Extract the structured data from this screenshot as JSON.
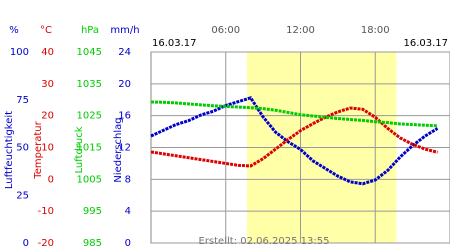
{
  "chart_data": {
    "type": "line",
    "date_left": "16.03.17",
    "date_right": "16.03.17",
    "created": "Erstellt: 02.06.2025 13:55",
    "x": [
      0,
      1,
      2,
      3,
      4,
      5,
      6,
      7,
      8,
      9,
      10,
      11,
      12,
      13,
      14,
      15,
      16,
      17,
      18,
      19,
      20,
      21,
      22,
      23
    ],
    "xlim": [
      0,
      24
    ],
    "xticks": [
      {
        "value": 6,
        "label": "06:00"
      },
      {
        "value": 12,
        "label": "12:00"
      },
      {
        "value": 18,
        "label": "18:00"
      }
    ],
    "daylight": [
      7.7,
      19.7
    ],
    "daylight_color": "#ffffa8",
    "grid": true,
    "axes": [
      {
        "unit": "%",
        "label": "Luftfeuchtigkeit",
        "color": "#0000cc",
        "ylim": [
          0,
          100
        ],
        "yticks": [
          0,
          25,
          50,
          75,
          100
        ],
        "values": [
          56,
          59,
          62,
          64,
          67,
          69,
          72,
          74,
          76,
          66,
          58,
          53,
          49,
          43,
          39,
          35,
          32,
          31,
          33,
          38,
          45,
          51,
          56,
          60
        ]
      },
      {
        "unit": "°C",
        "label": "Temperatur",
        "color": "#dd0000",
        "ylim": [
          -20,
          40
        ],
        "yticks": [
          -20,
          -10,
          0,
          10,
          20,
          30,
          40
        ],
        "values": [
          8.6,
          8.0,
          7.4,
          6.8,
          6.2,
          5.6,
          5.0,
          4.4,
          4.2,
          6.5,
          9.5,
          12.5,
          15.3,
          17.5,
          19.5,
          21.2,
          22.4,
          22.0,
          19.5,
          16.0,
          13.0,
          11.0,
          9.5,
          8.5
        ]
      },
      {
        "unit": "hPa",
        "label": "Luftdruck",
        "color": "#00cc00",
        "ylim": [
          985,
          1045
        ],
        "yticks": [
          985,
          995,
          1005,
          1015,
          1025,
          1035,
          1045
        ],
        "values": [
          1029.3,
          1029.2,
          1029.0,
          1028.7,
          1028.4,
          1028.1,
          1027.9,
          1027.7,
          1027.5,
          1027.2,
          1026.7,
          1026.0,
          1025.3,
          1024.9,
          1024.5,
          1024.1,
          1023.8,
          1023.5,
          1023.1,
          1022.8,
          1022.4,
          1022.2,
          1022.0,
          1021.8
        ]
      },
      {
        "unit": "mm/h",
        "label": "Niederschlag",
        "color": "#0000cc",
        "ylim": [
          0,
          24
        ],
        "yticks": [
          0,
          4,
          8,
          12,
          16,
          20,
          24
        ]
      }
    ]
  }
}
